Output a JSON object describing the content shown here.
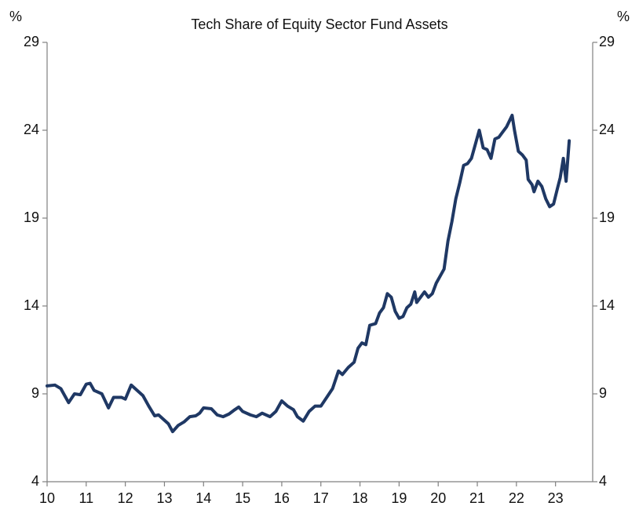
{
  "chart_data": {
    "type": "line",
    "title": "Tech Share of Equity Sector Fund Assets",
    "ylabel": "%",
    "color": "#1f3864",
    "x": [
      10.0,
      10.2,
      10.35,
      10.45,
      10.55,
      10.7,
      10.85,
      11.0,
      11.1,
      11.2,
      11.4,
      11.57,
      11.7,
      11.9,
      12.0,
      12.15,
      12.3,
      12.45,
      12.6,
      12.75,
      12.85,
      13.0,
      13.1,
      13.21,
      13.35,
      13.5,
      13.65,
      13.8,
      13.9,
      14.0,
      14.2,
      14.35,
      14.5,
      14.65,
      14.8,
      14.9,
      15.0,
      15.2,
      15.35,
      15.5,
      15.7,
      15.85,
      16.0,
      16.15,
      16.3,
      16.4,
      16.55,
      16.7,
      16.85,
      17.0,
      17.15,
      17.3,
      17.45,
      17.55,
      17.7,
      17.85,
      17.95,
      18.05,
      18.15,
      18.25,
      18.4,
      18.5,
      18.6,
      18.7,
      18.8,
      18.9,
      19.0,
      19.1,
      19.2,
      19.3,
      19.4,
      19.45,
      19.55,
      19.65,
      19.75,
      19.85,
      19.95,
      20.05,
      20.15,
      20.25,
      20.35,
      20.45,
      20.55,
      20.65,
      20.75,
      20.85,
      20.95,
      21.05,
      21.15,
      21.25,
      21.35,
      21.45,
      21.55,
      21.65,
      21.75,
      21.89,
      21.95,
      22.05,
      22.15,
      22.25,
      22.3,
      22.4,
      22.45,
      22.55,
      22.65,
      22.75,
      22.85,
      22.95,
      23.05,
      23.12,
      23.2,
      23.27,
      23.35
    ],
    "values": [
      9.45,
      9.5,
      9.3,
      8.9,
      8.5,
      9.0,
      8.95,
      9.55,
      9.6,
      9.2,
      9.0,
      8.2,
      8.8,
      8.8,
      8.7,
      9.5,
      9.2,
      8.9,
      8.3,
      7.75,
      7.8,
      7.5,
      7.3,
      6.85,
      7.2,
      7.4,
      7.7,
      7.75,
      7.9,
      8.2,
      8.15,
      7.8,
      7.7,
      7.85,
      8.1,
      8.25,
      8.0,
      7.8,
      7.7,
      7.9,
      7.7,
      8.0,
      8.6,
      8.3,
      8.1,
      7.7,
      7.45,
      8.0,
      8.3,
      8.3,
      8.8,
      9.3,
      10.3,
      10.1,
      10.5,
      10.8,
      11.6,
      11.9,
      11.8,
      12.9,
      13.0,
      13.6,
      13.9,
      14.7,
      14.5,
      13.7,
      13.3,
      13.4,
      13.9,
      14.1,
      14.8,
      14.2,
      14.5,
      14.8,
      14.5,
      14.7,
      15.3,
      15.7,
      16.1,
      17.7,
      18.8,
      20.1,
      21.0,
      22.0,
      22.1,
      22.4,
      23.2,
      24.0,
      23.0,
      22.9,
      22.4,
      23.5,
      23.6,
      23.9,
      24.2,
      24.85,
      24.0,
      22.8,
      22.6,
      22.3,
      21.2,
      20.9,
      20.5,
      21.1,
      20.8,
      20.1,
      19.65,
      19.8,
      20.7,
      21.3,
      22.4,
      21.1,
      23.4
    ],
    "xlim": [
      10,
      23.95
    ],
    "xticks": [
      10,
      11,
      12,
      13,
      14,
      15,
      16,
      17,
      18,
      19,
      20,
      21,
      22,
      23
    ],
    "ylim": [
      4,
      29
    ],
    "yticks": [
      4,
      9,
      14,
      19,
      24,
      29
    ]
  }
}
